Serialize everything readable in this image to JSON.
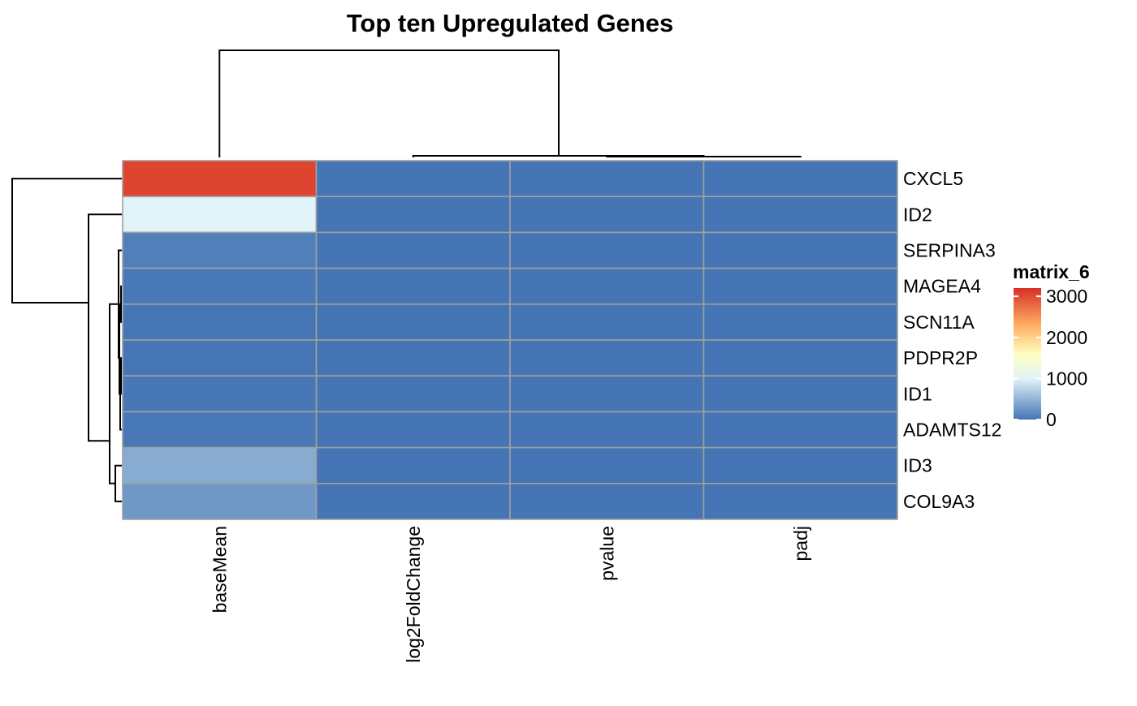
{
  "chart_data": {
    "type": "heatmap",
    "title": "Top ten Upregulated Genes",
    "rows": [
      "CXCL5",
      "ID2",
      "SERPINA3",
      "MAGEA4",
      "SCN11A",
      "PDPR2P",
      "ID1",
      "ADAMTS12",
      "ID3",
      "COL9A3"
    ],
    "columns": [
      "baseMean",
      "log2FoldChange",
      "pvalue",
      "padj"
    ],
    "values": [
      [
        3050,
        0,
        0,
        0
      ],
      [
        1000,
        0,
        0,
        0
      ],
      [
        80,
        0,
        0,
        0
      ],
      [
        20,
        0,
        0,
        0
      ],
      [
        10,
        0,
        0,
        0
      ],
      [
        10,
        0,
        0,
        0
      ],
      [
        15,
        0,
        0,
        0
      ],
      [
        20,
        0,
        0,
        0
      ],
      [
        430,
        0,
        0,
        0
      ],
      [
        280,
        0,
        0,
        0
      ]
    ],
    "legend": {
      "title": "matrix_6",
      "ticks": [
        3000,
        2000,
        1000,
        0
      ],
      "range": [
        0,
        3200
      ],
      "stops": [
        {
          "value": 0,
          "color": "#4575B4"
        },
        {
          "value": 1000,
          "color": "#E0F3F8"
        },
        {
          "value": 1600,
          "color": "#FFFFBF"
        },
        {
          "value": 2300,
          "color": "#FDAE61"
        },
        {
          "value": 3200,
          "color": "#D73027"
        }
      ],
      "placement": "right"
    },
    "row_dendrogram": true,
    "column_dendrogram": true,
    "cell_border_color": "#A0A0A0"
  }
}
